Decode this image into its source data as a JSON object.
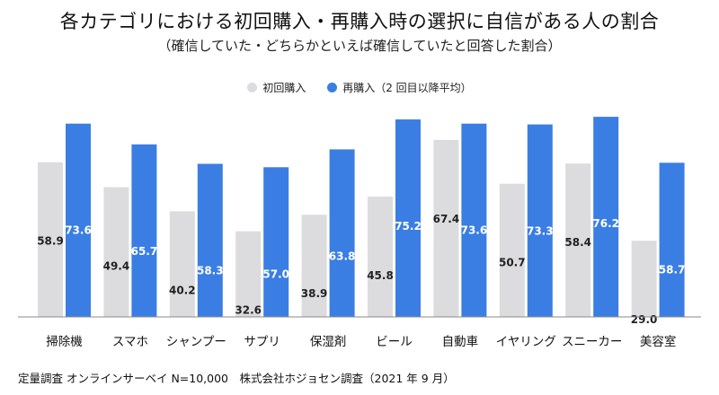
{
  "chart_data": {
    "type": "bar",
    "title": "各カテゴリにおける初回購入・再購入時の選択に自信がある人の割合",
    "subtitle": "（確信していた・どちらかといえば確信していたと回答した割合）",
    "categories": [
      "掃除機",
      "スマホ",
      "シャンプー",
      "サプリ",
      "保湿剤",
      "ビール",
      "自動車",
      "イヤリング",
      "スニーカー",
      "美容室"
    ],
    "series": [
      {
        "name": "初回購入",
        "color": "#dcdcdf",
        "label_color": "#222222",
        "values": [
          58.9,
          49.4,
          40.2,
          32.6,
          38.9,
          45.8,
          67.4,
          50.7,
          58.4,
          29.0
        ]
      },
      {
        "name": "再購入（2 回目以降平均）",
        "color": "#3b7ee3",
        "label_color": "#ffffff",
        "values": [
          73.6,
          65.7,
          58.3,
          57.0,
          63.8,
          75.2,
          73.6,
          73.3,
          76.2,
          58.7
        ]
      }
    ],
    "ylim": [
      0,
      80
    ],
    "xlabel": "",
    "ylabel": "",
    "grid": false
  },
  "footnote": "定量調査 オンラインサーベイ N=10,000　株式会社ホジョセン調査（2021 年 9 月）"
}
